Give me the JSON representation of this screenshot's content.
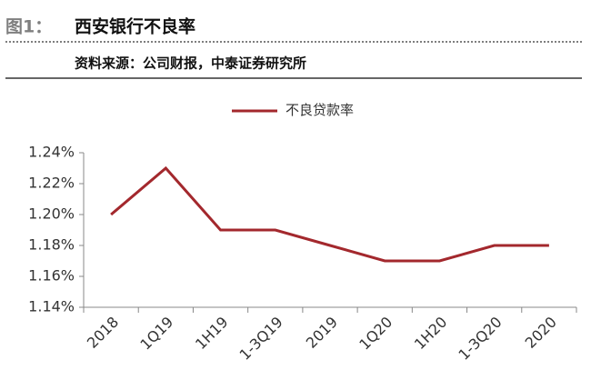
{
  "chart_data": {
    "type": "line",
    "figure_label": "图1：",
    "title": "西安银行不良率",
    "source": "资料来源：公司财报，中泰证券研究所",
    "categories": [
      "2018",
      "1Q19",
      "1H19",
      "1-3Q19",
      "2019",
      "1Q20",
      "1H20",
      "1-3Q20",
      "2020"
    ],
    "series": [
      {
        "name": "不良贷款率",
        "color": "#a3282d",
        "values": [
          1.2,
          1.23,
          1.19,
          1.19,
          1.18,
          1.17,
          1.17,
          1.18,
          1.18
        ]
      }
    ],
    "ylim": [
      1.14,
      1.24
    ],
    "yticks": [
      {
        "value": 1.14,
        "label": "1.14%"
      },
      {
        "value": 1.16,
        "label": "1.16%"
      },
      {
        "value": 1.18,
        "label": "1.18%"
      },
      {
        "value": 1.2,
        "label": "1.20%"
      },
      {
        "value": 1.22,
        "label": "1.22%"
      },
      {
        "value": 1.24,
        "label": "1.24%"
      }
    ],
    "legend": "top"
  }
}
